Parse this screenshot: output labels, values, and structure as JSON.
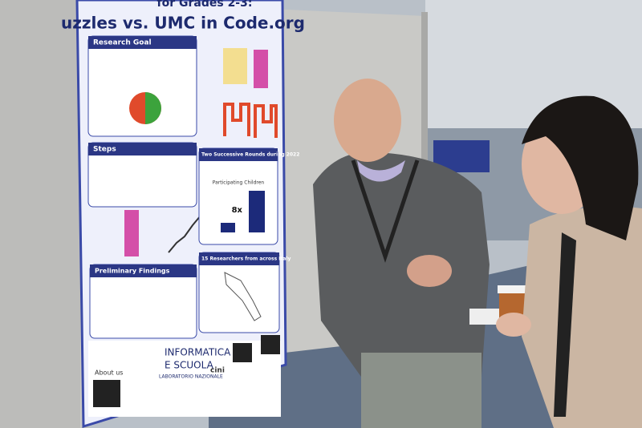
{
  "poster": {
    "title_line1": "for Grades 2-3:",
    "title_line2": "uzzles vs. UMC in Code.org",
    "sections": [
      "Research Goal",
      "Steps",
      "Two Successive Rounds during 2022",
      "Preliminary Findings",
      "15 Researchers from across Italy"
    ],
    "chart_title": "Participating Children",
    "chart_label": "8x",
    "about": "About us",
    "logo": {
      "line1": "INFORMATICA",
      "line2": "E SCUOLA",
      "line3": "LABORATORIO NAZIONALE",
      "brand": "cini"
    }
  }
}
